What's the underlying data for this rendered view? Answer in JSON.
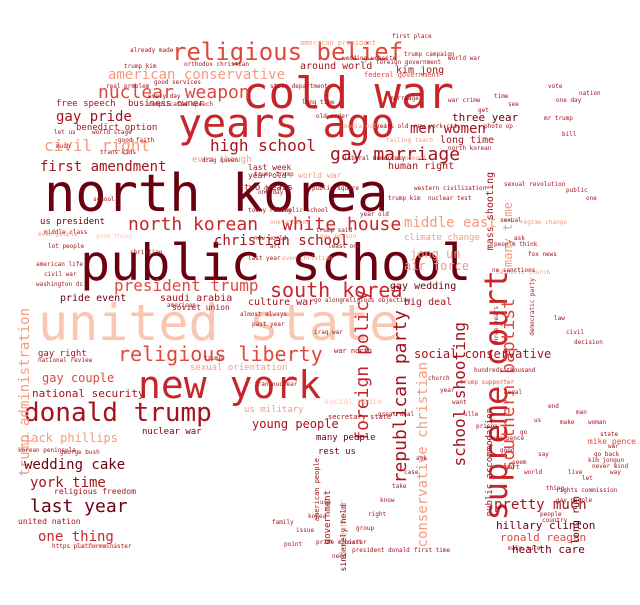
{
  "colors": {
    "background": "#ffffff",
    "darkest": "#6b0010",
    "dark": "#a3141d",
    "red": "#c8252b",
    "mid": "#e0483c",
    "light": "#f59a7f",
    "pale": "#fbc6b0"
  },
  "words": [
    {
      "text": "north korea",
      "tone": "darkest"
    },
    {
      "text": "public school",
      "tone": "darkest"
    },
    {
      "text": "united state",
      "tone": "pale"
    },
    {
      "text": "cold war",
      "tone": "red"
    },
    {
      "text": "years ago",
      "tone": "red"
    },
    {
      "text": "new york",
      "tone": "red"
    },
    {
      "text": "donald trump",
      "tone": "dark"
    },
    {
      "text": "supreme court",
      "tone": "red"
    },
    {
      "text": "religious belief",
      "tone": "mid"
    },
    {
      "text": "religious liberty",
      "tone": "mid"
    },
    {
      "text": "north korean",
      "tone": "red"
    },
    {
      "text": "white house",
      "tone": "red"
    },
    {
      "text": "south korea",
      "tone": "red"
    },
    {
      "text": "nuclear weapon",
      "tone": "mid"
    },
    {
      "text": "gay marriage",
      "tone": "dark"
    },
    {
      "text": "foreign policy",
      "tone": "red"
    },
    {
      "text": "republican party",
      "tone": "dark"
    },
    {
      "text": "president trump",
      "tone": "mid"
    },
    {
      "text": "high school",
      "tone": "dark"
    },
    {
      "text": "christian school",
      "tone": "dark"
    },
    {
      "text": "southern baptist",
      "tone": "mid"
    },
    {
      "text": "american conservative",
      "tone": "light"
    },
    {
      "text": "civil right",
      "tone": "light"
    },
    {
      "text": "men women",
      "tone": "dark"
    },
    {
      "text": "middle east",
      "tone": "light"
    },
    {
      "text": "school shooting",
      "tone": "dark"
    },
    {
      "text": "conservative christian",
      "tone": "light"
    },
    {
      "text": "first amendment",
      "tone": "dark"
    },
    {
      "text": "trump administration",
      "tone": "light"
    },
    {
      "text": "gay pride",
      "tone": "dark"
    },
    {
      "text": "wedding cake",
      "tone": "darkest"
    },
    {
      "text": "last year",
      "tone": "darkest"
    },
    {
      "text": "york time",
      "tone": "dark"
    },
    {
      "text": "one thing",
      "tone": "red"
    },
    {
      "text": "jack phillips",
      "tone": "light"
    },
    {
      "text": "gay couple",
      "tone": "mid"
    },
    {
      "text": "young people",
      "tone": "dark"
    },
    {
      "text": "pretty much",
      "tone": "dark"
    },
    {
      "text": "jong un",
      "tone": "light"
    },
    {
      "text": "air force",
      "tone": "light"
    },
    {
      "text": "national security",
      "tone": "dark"
    },
    {
      "text": "many time",
      "tone": "light"
    },
    {
      "text": "social conservative",
      "tone": "dark"
    },
    {
      "text": "hillary clinton",
      "tone": "darkest"
    },
    {
      "text": "ronald reagan",
      "tone": "mid"
    },
    {
      "text": "health care",
      "tone": "darkest"
    },
    {
      "text": "three year",
      "tone": "darkest"
    },
    {
      "text": "long time",
      "tone": "dark"
    },
    {
      "text": "kim jong",
      "tone": "dark"
    },
    {
      "text": "around world",
      "tone": "dark"
    },
    {
      "text": "human right",
      "tone": "dark"
    },
    {
      "text": "mass shooting",
      "tone": "dark"
    },
    {
      "text": "saudi arabia",
      "tone": "dark"
    },
    {
      "text": "gay wedding",
      "tone": "darkest"
    },
    {
      "text": "big deal",
      "tone": "dark"
    },
    {
      "text": "pride event",
      "tone": "darkest"
    },
    {
      "text": "culture war",
      "tone": "dark"
    },
    {
      "text": "free speech",
      "tone": "dark"
    },
    {
      "text": "business owner",
      "tone": "dark"
    },
    {
      "text": "benedict option",
      "tone": "dark"
    },
    {
      "text": "us president",
      "tone": "darkest"
    },
    {
      "text": "last week",
      "tone": "dark"
    },
    {
      "text": "two years",
      "tone": "dark"
    },
    {
      "text": "even though",
      "tone": "light"
    },
    {
      "text": "year old",
      "tone": "dark"
    },
    {
      "text": "climate change",
      "tone": "light"
    },
    {
      "text": "united nation",
      "tone": "dark"
    },
    {
      "text": "religious freedom",
      "tone": "dark"
    },
    {
      "text": "many people",
      "tone": "darkest"
    },
    {
      "text": "rest us",
      "tone": "darkest"
    },
    {
      "text": "nuclear war",
      "tone": "darkest"
    },
    {
      "text": "us military",
      "tone": "light"
    },
    {
      "text": "social media",
      "tone": "pale"
    },
    {
      "text": "sexual orientation",
      "tone": "light"
    },
    {
      "text": "public accommodation",
      "tone": "dark"
    },
    {
      "text": "government",
      "tone": "dark"
    },
    {
      "text": "american people",
      "tone": "dark"
    },
    {
      "text": "sincerely held",
      "tone": "darkest"
    },
    {
      "text": "korean war",
      "tone": "light"
    },
    {
      "text": "long run",
      "tone": "darkest"
    },
    {
      "text": "gay right",
      "tone": "dark"
    },
    {
      "text": "soviet union",
      "tone": "dark"
    },
    {
      "text": "federal government",
      "tone": "mid"
    },
    {
      "text": "american president",
      "tone": "light"
    },
    {
      "text": "first place",
      "tone": "dark"
    },
    {
      "text": "already made",
      "tone": "dark"
    },
    {
      "text": "orthodox christian",
      "tone": "dark"
    },
    {
      "text": "trump kim",
      "tone": "dark"
    },
    {
      "text": "world war",
      "tone": "light"
    },
    {
      "text": "rights commission",
      "tone": "dark"
    },
    {
      "text": "president donald",
      "tone": "dark"
    },
    {
      "text": "first time",
      "tone": "dark"
    },
    {
      "text": "korean peninsula",
      "tone": "dark"
    },
    {
      "text": "drag queen",
      "tone": "dark"
    },
    {
      "text": "past year",
      "tone": "dark"
    },
    {
      "text": "great deal",
      "tone": "dark"
    },
    {
      "text": "make sure",
      "tone": "dark"
    },
    {
      "text": "people think",
      "tone": "dark"
    },
    {
      "text": "catholic church",
      "tone": "light"
    },
    {
      "text": "democratic party",
      "tone": "dark"
    },
    {
      "text": "middle class",
      "tone": "dark"
    },
    {
      "text": "lot people",
      "tone": "dark"
    },
    {
      "text": "even people",
      "tone": "light"
    },
    {
      "text": "civil war",
      "tone": "dark"
    },
    {
      "text": "washington dc",
      "tone": "dark"
    },
    {
      "text": "new world",
      "tone": "dark"
    },
    {
      "text": "trump supporter",
      "tone": "mid"
    },
    {
      "text": "hundreds thousand",
      "tone": "dark"
    },
    {
      "text": "go back",
      "tone": "dark"
    },
    {
      "text": "kim jongun",
      "tone": "dark"
    },
    {
      "text": "never mind",
      "tone": "dark"
    },
    {
      "text": "mike pence",
      "tone": "mid"
    },
    {
      "text": "george bush",
      "tone": "dark"
    },
    {
      "text": "national review",
      "tone": "dark"
    },
    {
      "text": "today ruling",
      "tone": "dark"
    },
    {
      "text": "iran nuclear",
      "tone": "dark"
    },
    {
      "text": "secretary state",
      "tone": "dark"
    },
    {
      "text": "almost always",
      "tone": "dark"
    },
    {
      "text": "war north",
      "tone": "dark"
    },
    {
      "text": "go along",
      "tone": "dark"
    },
    {
      "text": "iraq war",
      "tone": "dark"
    },
    {
      "text": "religious objection",
      "tone": "dark"
    },
    {
      "text": "american life",
      "tone": "dark"
    },
    {
      "text": "let us",
      "tone": "dark"
    },
    {
      "text": "one day",
      "tone": "dark"
    },
    {
      "text": "good thing",
      "tone": "pale"
    },
    {
      "text": "foreign government",
      "tone": "dark"
    },
    {
      "text": "world stage",
      "tone": "dark"
    },
    {
      "text": "last year",
      "tone": "dark"
    },
    {
      "text": "new york city",
      "tone": "dark"
    },
    {
      "text": "trump said",
      "tone": "dark"
    },
    {
      "text": "wedding website",
      "tone": "dark"
    },
    {
      "text": "marriage",
      "tone": "dark"
    },
    {
      "text": "war crime",
      "tone": "dark"
    },
    {
      "text": "failing teach",
      "tone": "light"
    },
    {
      "text": "trump campaign",
      "tone": "dark"
    },
    {
      "text": "three years",
      "tone": "dark"
    },
    {
      "text": "north korean",
      "tone": "dark"
    },
    {
      "text": "world war",
      "tone": "dark"
    },
    {
      "text": "photo op",
      "tone": "dark"
    },
    {
      "text": "every day",
      "tone": "dark"
    },
    {
      "text": "good services",
      "tone": "dark"
    },
    {
      "text": "real problem",
      "tone": "dark"
    },
    {
      "text": "trans kids",
      "tone": "dark"
    },
    {
      "text": "good faith",
      "tone": "dark"
    },
    {
      "text": "complicated speech",
      "tone": "dark"
    },
    {
      "text": "prime minister",
      "tone": "dark"
    },
    {
      "text": "https platformminister",
      "tone": "dark"
    },
    {
      "text": "conservative",
      "tone": "light"
    },
    {
      "text": "trump kim",
      "tone": "dark"
    },
    {
      "text": "ne sanctions",
      "tone": "dark"
    },
    {
      "text": "long time",
      "tone": "dark"
    },
    {
      "text": "media outlet",
      "tone": "light"
    },
    {
      "text": "years old",
      "tone": "dark"
    },
    {
      "text": "state department",
      "tone": "dark"
    },
    {
      "text": "old order",
      "tone": "dark"
    },
    {
      "text": "first amendment",
      "tone": "light"
    },
    {
      "text": "liberal democracy",
      "tone": "dark"
    },
    {
      "text": "public square",
      "tone": "dark"
    },
    {
      "text": "western civilization",
      "tone": "dark"
    },
    {
      "text": "nuclear test",
      "tone": "dark"
    },
    {
      "text": "catholic school",
      "tone": "dark"
    },
    {
      "text": "gay person",
      "tone": "light"
    },
    {
      "text": "least one",
      "tone": "dark"
    },
    {
      "text": "one another",
      "tone": "light"
    },
    {
      "text": "even christian",
      "tone": "light"
    },
    {
      "text": "trump trump",
      "tone": "dark"
    },
    {
      "text": "get rid",
      "tone": "dark"
    },
    {
      "text": "art",
      "tone": "dark"
    },
    {
      "text": "year old",
      "tone": "dark"
    },
    {
      "text": "sexual",
      "tone": "dark"
    },
    {
      "text": "ask",
      "tone": "dark"
    },
    {
      "text": "regime change",
      "tone": "light"
    },
    {
      "text": "fox news",
      "tone": "dark"
    },
    {
      "text": "legal",
      "tone": "dark"
    },
    {
      "text": "law",
      "tone": "dark"
    },
    {
      "text": "civil",
      "tone": "dark"
    },
    {
      "text": "decision",
      "tone": "dark"
    },
    {
      "text": "people",
      "tone": "dark"
    },
    {
      "text": "gay people",
      "tone": "dark"
    },
    {
      "text": "sexual revolution",
      "tone": "dark"
    },
    {
      "text": "public",
      "tone": "dark"
    },
    {
      "text": "one",
      "tone": "dark"
    },
    {
      "text": "get",
      "tone": "dark"
    },
    {
      "text": "time",
      "tone": "dark"
    },
    {
      "text": "see",
      "tone": "dark"
    },
    {
      "text": "mr trump",
      "tone": "dark"
    },
    {
      "text": "one day",
      "tone": "dark"
    },
    {
      "text": "vote",
      "tone": "dark"
    },
    {
      "text": "bill",
      "tone": "dark"
    },
    {
      "text": "say",
      "tone": "dark"
    },
    {
      "text": "go",
      "tone": "dark"
    },
    {
      "text": "us",
      "tone": "dark"
    },
    {
      "text": "end",
      "tone": "dark"
    },
    {
      "text": "make",
      "tone": "dark"
    },
    {
      "text": "man",
      "tone": "dark"
    },
    {
      "text": "woman",
      "tone": "dark"
    },
    {
      "text": "state",
      "tone": "dark"
    },
    {
      "text": "war",
      "tone": "dark"
    },
    {
      "text": "way",
      "tone": "dark"
    },
    {
      "text": "let",
      "tone": "dark"
    },
    {
      "text": "live",
      "tone": "dark"
    },
    {
      "text": "thing",
      "tone": "dark"
    },
    {
      "text": "world",
      "tone": "dark"
    },
    {
      "text": "seem",
      "tone": "dark"
    },
    {
      "text": "good",
      "tone": "dark"
    },
    {
      "text": "june pence",
      "tone": "dark"
    },
    {
      "text": "prison",
      "tone": "dark"
    },
    {
      "text": "ulle",
      "tone": "dark"
    },
    {
      "text": "want",
      "tone": "dark"
    },
    {
      "text": "year",
      "tone": "dark"
    },
    {
      "text": "church",
      "tone": "dark"
    },
    {
      "text": "ask",
      "tone": "dark"
    },
    {
      "text": "case",
      "tone": "dark"
    },
    {
      "text": "take",
      "tone": "dark"
    },
    {
      "text": "know",
      "tone": "dark"
    },
    {
      "text": "right",
      "tone": "dark"
    },
    {
      "text": "group",
      "tone": "dark"
    },
    {
      "text": "court",
      "tone": "dark"
    },
    {
      "text": "need",
      "tone": "dark"
    },
    {
      "text": "use",
      "tone": "dark"
    },
    {
      "text": "korea",
      "tone": "dark"
    },
    {
      "text": "issue",
      "tone": "dark"
    },
    {
      "text": "point",
      "tone": "dark"
    },
    {
      "text": "family",
      "tone": "dark"
    },
    {
      "text": "part",
      "tone": "dark"
    },
    {
      "text": "country",
      "tone": "dark"
    },
    {
      "text": "nation",
      "tone": "dark"
    },
    {
      "text": "much",
      "tone": "dark"
    },
    {
      "text": "school",
      "tone": "dark"
    },
    {
      "text": "christian",
      "tone": "dark"
    },
    {
      "text": "american",
      "tone": "dark"
    },
    {
      "text": "trump",
      "tone": "dark"
    }
  ]
}
